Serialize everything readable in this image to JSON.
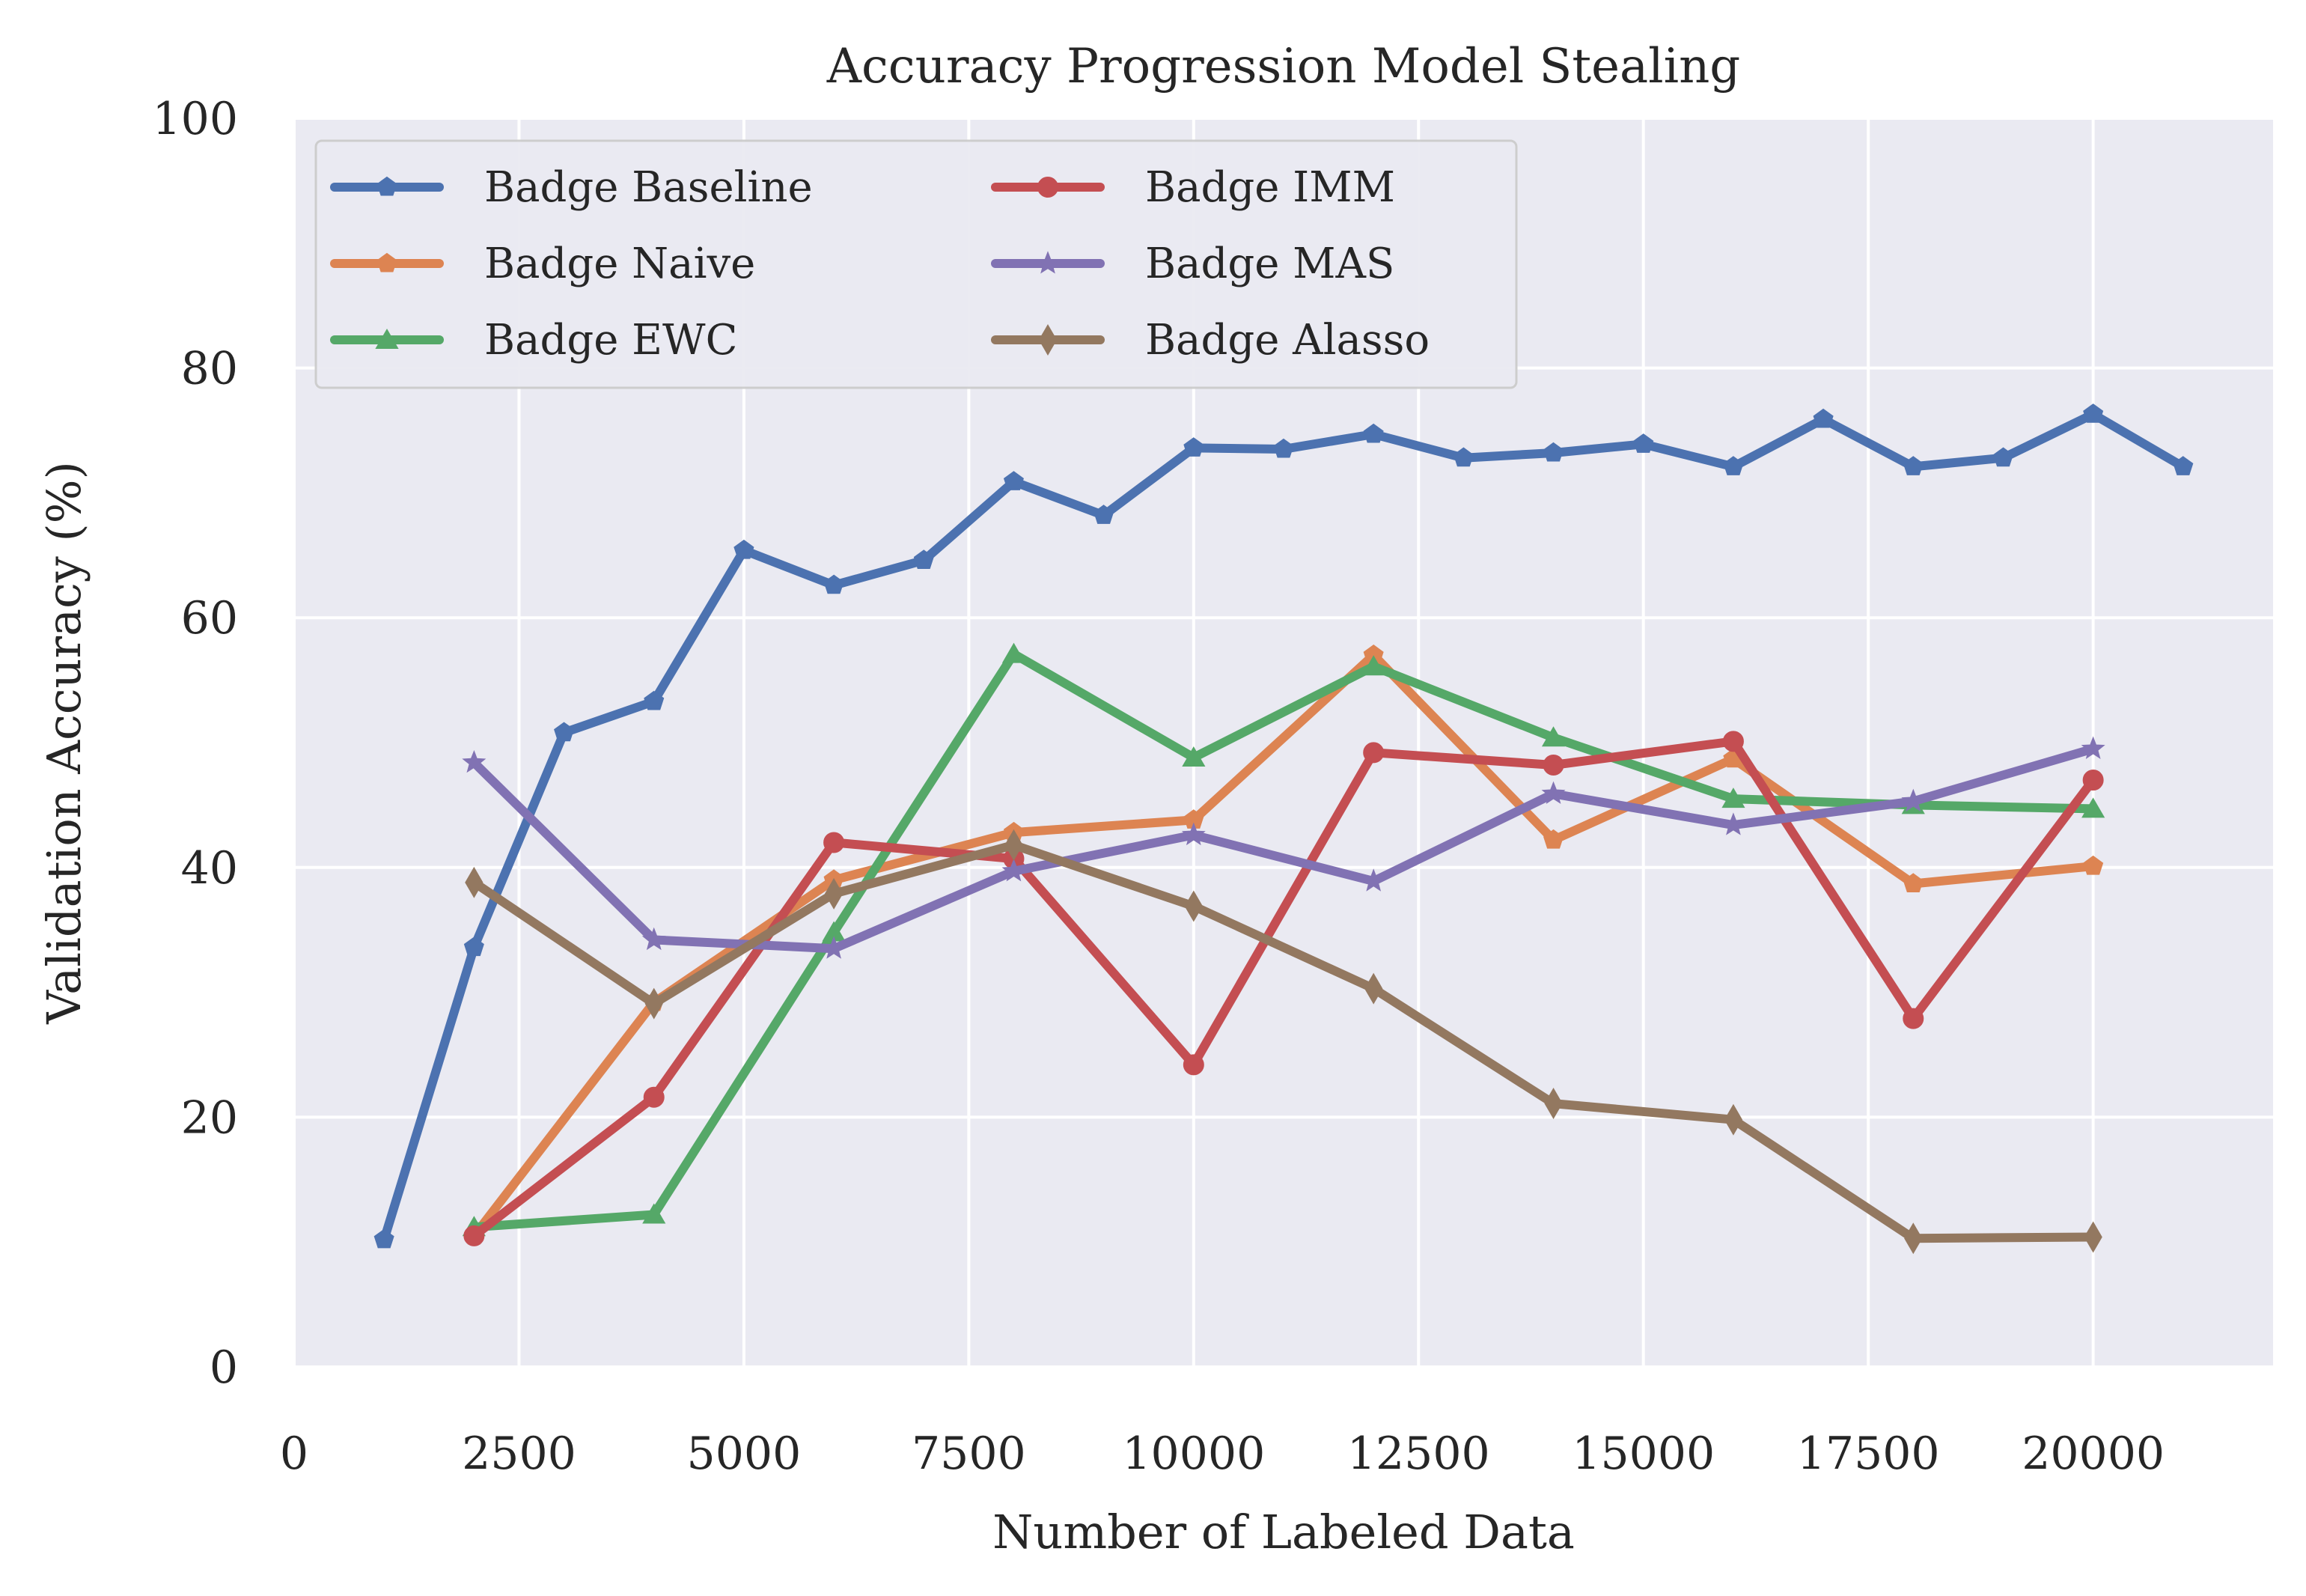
{
  "chart_data": {
    "type": "line",
    "title": "Accuracy Progression Model Stealing",
    "xlabel": "Number of Labeled Data",
    "ylabel": "Validation Accuracy (%)",
    "xlim": [
      0,
      22000
    ],
    "ylim": [
      0,
      100
    ],
    "xticks": [
      0,
      2500,
      5000,
      7500,
      10000,
      12500,
      15000,
      17500,
      20000
    ],
    "yticks": [
      0,
      20,
      40,
      60,
      80,
      100
    ],
    "grid": true,
    "legend_position": "top-left",
    "legend_columns": 2,
    "series": [
      {
        "name": "Badge Baseline",
        "color": "#4c72b0",
        "marker": "pentagon",
        "x": [
          1000,
          2000,
          3000,
          4000,
          5000,
          6000,
          7000,
          8000,
          9000,
          10000,
          11000,
          12000,
          13000,
          14000,
          15000,
          16000,
          17000,
          18000,
          19000,
          20000,
          21000
        ],
        "y": [
          10.2,
          33.6,
          50.8,
          53.3,
          65.4,
          62.6,
          64.6,
          70.9,
          68.2,
          73.6,
          73.5,
          74.7,
          72.8,
          73.2,
          73.9,
          72.1,
          75.9,
          72.1,
          72.8,
          76.3,
          72.1
        ]
      },
      {
        "name": "Badge Naive",
        "color": "#dd8452",
        "marker": "pentagon",
        "x": [
          2000,
          4000,
          6000,
          8000,
          10000,
          12000,
          14000,
          16000,
          18000,
          20000
        ],
        "y": [
          10.5,
          29.2,
          39.0,
          42.8,
          43.8,
          57.0,
          42.2,
          48.7,
          38.7,
          40.1
        ]
      },
      {
        "name": "Badge EWC",
        "color": "#55a868",
        "marker": "triangle",
        "x": [
          2000,
          4000,
          6000,
          8000,
          10000,
          12000,
          14000,
          16000,
          18000,
          20000
        ],
        "y": [
          11.2,
          12.2,
          34.8,
          57.1,
          48.8,
          56.1,
          50.4,
          45.5,
          45.0,
          44.7
        ]
      },
      {
        "name": "Badge IMM",
        "color": "#c44e52",
        "marker": "circle",
        "x": [
          2000,
          4000,
          6000,
          8000,
          10000,
          12000,
          14000,
          16000,
          18000,
          20000
        ],
        "y": [
          10.5,
          21.6,
          42.0,
          40.7,
          24.2,
          49.2,
          48.2,
          50.1,
          27.9,
          47.0
        ]
      },
      {
        "name": "Badge MAS",
        "color": "#8172b3",
        "marker": "star",
        "x": [
          2000,
          4000,
          6000,
          8000,
          10000,
          12000,
          14000,
          16000,
          18000,
          20000
        ],
        "y": [
          48.4,
          34.2,
          33.5,
          39.7,
          42.6,
          38.9,
          45.9,
          43.4,
          45.3,
          49.5
        ]
      },
      {
        "name": "Badge Alasso",
        "color": "#937860",
        "marker": "thin-diamond",
        "x": [
          2000,
          4000,
          6000,
          8000,
          10000,
          12000,
          14000,
          16000,
          18000,
          20000
        ],
        "y": [
          38.8,
          29.1,
          37.9,
          41.8,
          36.9,
          30.3,
          21.1,
          19.8,
          10.3,
          10.4
        ]
      }
    ]
  }
}
